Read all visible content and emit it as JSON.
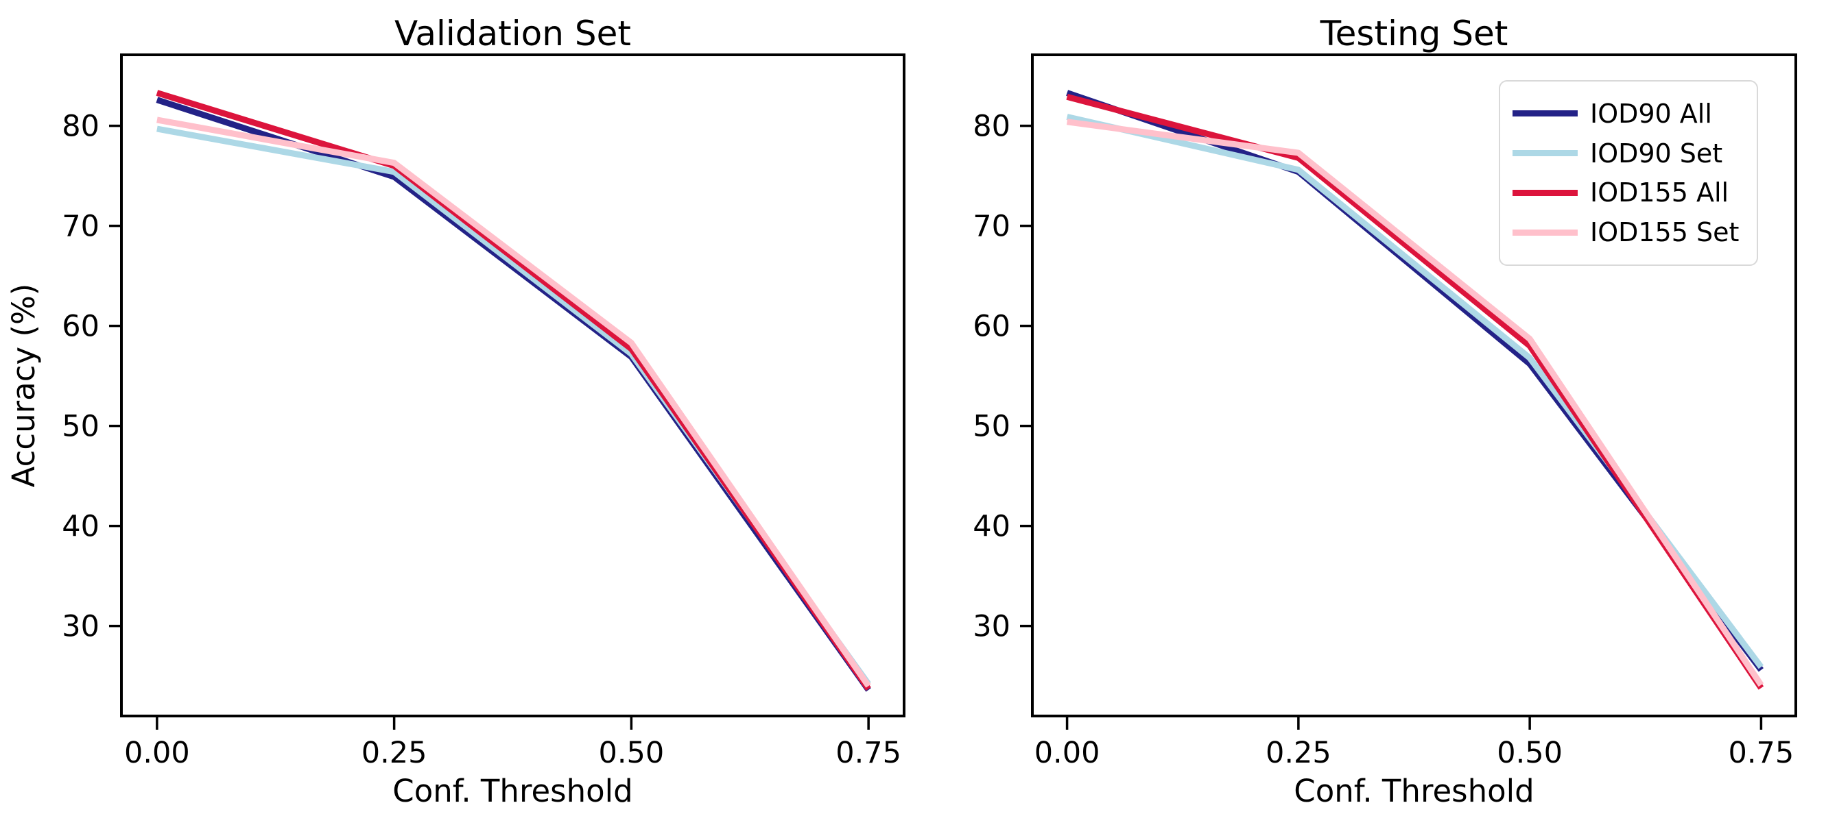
{
  "figure": {
    "background": "#ffffff",
    "text_color": "#000000",
    "spine_color": "#000000"
  },
  "chart_data": [
    {
      "type": "line",
      "title": "Validation Set",
      "xlabel": "Conf. Threshold",
      "ylabel": "Accuracy (%)",
      "x": [
        0.0,
        0.25,
        0.5,
        0.75
      ],
      "xtick_labels": [
        "0.00",
        "0.25",
        "0.50",
        "0.75"
      ],
      "yticks": [
        30,
        40,
        50,
        60,
        70,
        80
      ],
      "xlim": [
        -0.0375,
        0.7875
      ],
      "ylim": [
        21,
        87.1
      ],
      "grid": false,
      "series": [
        {
          "name": "IOD90 All",
          "color": "#232287",
          "values": [
            82.6,
            74.9,
            56.9,
            23.6
          ]
        },
        {
          "name": "IOD90 Set",
          "color": "#add8e6",
          "values": [
            79.7,
            75.4,
            57.2,
            24.2
          ]
        },
        {
          "name": "IOD155 All",
          "color": "#dc143c",
          "values": [
            83.3,
            76.0,
            57.7,
            23.7
          ]
        },
        {
          "name": "IOD155 Set",
          "color": "#ffc0cb",
          "values": [
            80.6,
            76.3,
            58.3,
            24.0
          ]
        }
      ]
    },
    {
      "type": "line",
      "title": "Testing Set",
      "xlabel": "Conf. Threshold",
      "x": [
        0.0,
        0.25,
        0.5,
        0.75
      ],
      "xtick_labels": [
        "0.00",
        "0.25",
        "0.50",
        "0.75"
      ],
      "yticks": [
        30,
        40,
        50,
        60,
        70,
        80
      ],
      "xlim": [
        -0.0375,
        0.7875
      ],
      "ylim": [
        21,
        87.1
      ],
      "grid": false,
      "legend": {
        "position": "upper right"
      },
      "series": [
        {
          "name": "IOD90 All",
          "color": "#232287",
          "values": [
            83.3,
            75.4,
            56.2,
            25.6
          ]
        },
        {
          "name": "IOD90 Set",
          "color": "#add8e6",
          "values": [
            80.9,
            75.6,
            56.8,
            25.9
          ]
        },
        {
          "name": "IOD155 All",
          "color": "#dc143c",
          "values": [
            82.9,
            76.8,
            58.0,
            23.8
          ]
        },
        {
          "name": "IOD155 Set",
          "color": "#ffc0cb",
          "values": [
            80.4,
            77.3,
            58.7,
            24.1
          ]
        }
      ]
    }
  ]
}
